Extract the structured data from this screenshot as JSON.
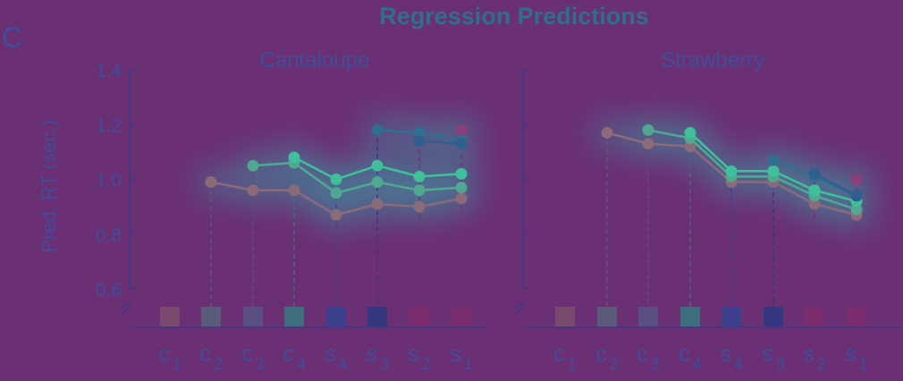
{
  "figure": {
    "title": "Regression Predictions",
    "panel_letter": "C"
  },
  "colors": {
    "background": "#6b2f73",
    "title": "#2f6f8c",
    "axis": "#3b3a86",
    "text": "#3e4e9a",
    "glow": "#2fb3b0"
  },
  "chart_data": [
    {
      "type": "line",
      "title": "Cantaloupe",
      "ylabel": "Pred. RT (sec.)",
      "ylim": [
        0.6,
        1.4
      ],
      "yticks": [
        "0.6",
        "0.8",
        "1.0",
        "1.2",
        "1.4"
      ],
      "grid": false,
      "y_axis_break": true,
      "categories": [
        {
          "main": "c",
          "sub": "1"
        },
        {
          "main": "c",
          "sub": "2"
        },
        {
          "main": "c",
          "sub": "3"
        },
        {
          "main": "c",
          "sub": "4"
        },
        {
          "main": "s",
          "sub": "4"
        },
        {
          "main": "s",
          "sub": "3"
        },
        {
          "main": "s",
          "sub": "2"
        },
        {
          "main": "s",
          "sub": "1"
        }
      ],
      "category_colors": [
        "#7a4a6e",
        "#5a5a7a",
        "#5a4f80",
        "#3f6f7f",
        "#3b3f8c",
        "#34367f",
        "#7a2d6e",
        "#7a2d6e"
      ],
      "series": [
        {
          "color": "#8a6b7a",
          "values": [
            null,
            0.99,
            0.96,
            0.96,
            0.87,
            0.91,
            0.9,
            0.93
          ]
        },
        {
          "color": "#4fa88f",
          "values": [
            null,
            null,
            1.05,
            1.06,
            0.95,
            0.99,
            0.96,
            0.97
          ]
        },
        {
          "color": "#3fbf9a",
          "values": [
            null,
            null,
            null,
            1.08,
            1.0,
            1.05,
            1.01,
            1.02
          ]
        },
        {
          "color": "#2f6f8f",
          "values": [
            null,
            null,
            null,
            null,
            null,
            1.18,
            1.17,
            1.14
          ]
        },
        {
          "color": "#2f5f8f",
          "values": [
            null,
            null,
            null,
            null,
            null,
            null,
            1.14,
            1.13
          ]
        },
        {
          "color": "#8a3f7a",
          "values": [
            null,
            null,
            null,
            null,
            null,
            null,
            null,
            1.18
          ]
        }
      ]
    },
    {
      "type": "line",
      "title": "Strawberry",
      "ylim": [
        0.6,
        1.4
      ],
      "grid": false,
      "y_axis_break": true,
      "categories": [
        {
          "main": "c",
          "sub": "1"
        },
        {
          "main": "c",
          "sub": "2"
        },
        {
          "main": "c",
          "sub": "3"
        },
        {
          "main": "c",
          "sub": "4"
        },
        {
          "main": "s",
          "sub": "4"
        },
        {
          "main": "s",
          "sub": "3"
        },
        {
          "main": "s",
          "sub": "2"
        },
        {
          "main": "s",
          "sub": "1"
        }
      ],
      "category_colors": [
        "#7a4a6e",
        "#5a5a7a",
        "#5a4f80",
        "#3f6f7f",
        "#3b3f8c",
        "#34367f",
        "#7a2d6e",
        "#7a2d6e"
      ],
      "series": [
        {
          "color": "#8a6b7a",
          "values": [
            null,
            1.17,
            1.13,
            1.12,
            0.99,
            0.99,
            0.91,
            0.87
          ]
        },
        {
          "color": "#4fa88f",
          "values": [
            null,
            null,
            1.18,
            1.15,
            1.01,
            1.01,
            0.94,
            0.89
          ]
        },
        {
          "color": "#3fbf9a",
          "values": [
            null,
            null,
            null,
            1.17,
            1.03,
            1.03,
            0.96,
            0.92
          ]
        },
        {
          "color": "#2f6f8f",
          "values": [
            null,
            null,
            null,
            null,
            null,
            1.07,
            1.01,
            0.94
          ]
        },
        {
          "color": "#2f5f8f",
          "values": [
            null,
            null,
            null,
            null,
            null,
            null,
            1.02,
            0.94
          ]
        },
        {
          "color": "#8a3f7a",
          "values": [
            null,
            null,
            null,
            null,
            null,
            null,
            null,
            1.0
          ]
        }
      ]
    }
  ]
}
